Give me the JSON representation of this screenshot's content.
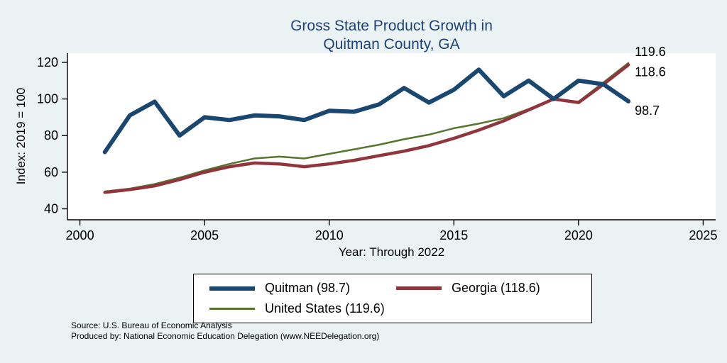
{
  "title": {
    "line1": "Gross State Product Growth in",
    "line2": "Quitman County, GA"
  },
  "chart_data": {
    "type": "line",
    "title": "Gross State Product Growth in Quitman County, GA",
    "xlabel": "Year: Through 2022",
    "ylabel": "Index: 2019 = 100",
    "xlim": [
      2000,
      2025
    ],
    "ylim": [
      40,
      120
    ],
    "xticks": [
      2000,
      2005,
      2010,
      2015,
      2020,
      2025
    ],
    "yticks": [
      40,
      60,
      80,
      100,
      120
    ],
    "grid": false,
    "legend_position": "bottom",
    "x": [
      2001,
      2002,
      2003,
      2004,
      2005,
      2006,
      2007,
      2008,
      2009,
      2010,
      2011,
      2012,
      2013,
      2014,
      2015,
      2016,
      2017,
      2018,
      2019,
      2020,
      2021,
      2022
    ],
    "series": [
      {
        "name": "Quitman",
        "legend_label": "Quitman  (98.7)",
        "end_label": "98.7",
        "color": "#1a476f",
        "width": 6,
        "values": [
          71,
          91,
          98.5,
          80,
          90,
          88.5,
          91,
          90.5,
          88.5,
          93.5,
          93,
          97,
          106,
          98,
          105,
          116,
          101.5,
          110,
          100,
          110,
          108,
          98.7
        ]
      },
      {
        "name": "Georgia",
        "legend_label": "Georgia (118.6)",
        "end_label": "118.6",
        "color": "#90353b",
        "width": 4.5,
        "values": [
          49,
          50.5,
          52.5,
          56,
          60,
          63,
          65,
          64.5,
          63,
          64.5,
          66.5,
          69,
          71.5,
          74.5,
          78.5,
          83,
          88,
          94,
          100,
          98,
          108,
          118.6
        ]
      },
      {
        "name": "United States",
        "legend_label": "United States (119.6)",
        "end_label": "119.6",
        "color": "#55752f",
        "width": 2.5,
        "values": [
          49.5,
          51,
          53.5,
          57,
          61,
          64.5,
          67.5,
          68.5,
          67.5,
          70,
          72.5,
          75,
          78,
          80.5,
          84,
          86.5,
          89.5,
          94.5,
          100,
          98.5,
          109,
          119.6
        ]
      }
    ]
  },
  "footer": {
    "source": "Source: U.S. Bureau of Economic Analysis",
    "produced": "Produced by: National Economic Education Delegation (www.NEEDelegation.org)"
  }
}
